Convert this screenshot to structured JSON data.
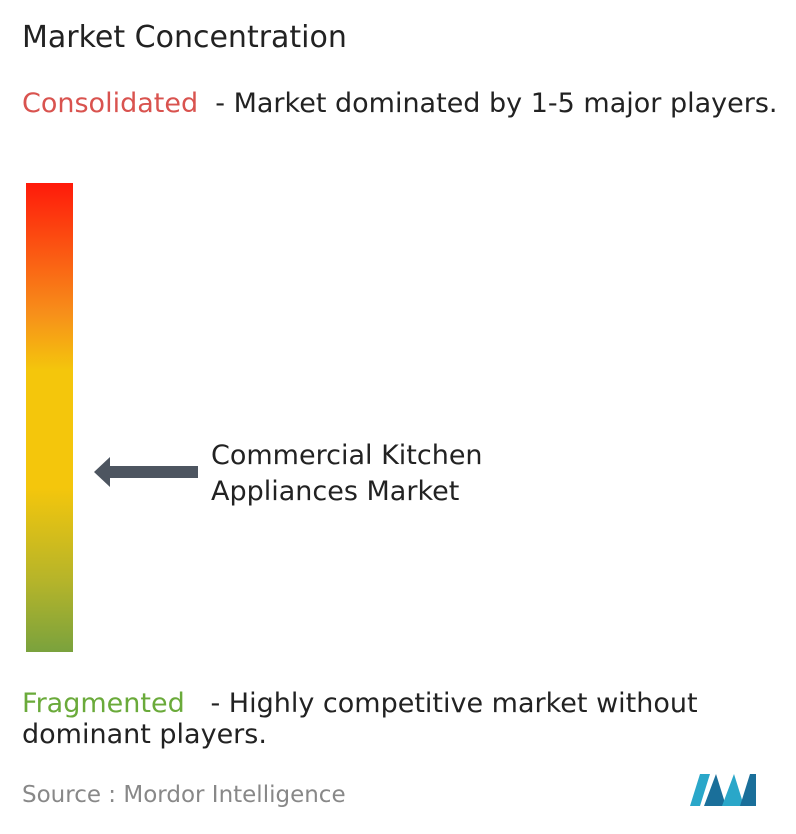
{
  "title": "Market Concentration",
  "consolidated": {
    "label": "Consolidated",
    "description": "- Market dominated by 1-5 major players."
  },
  "fragmented": {
    "label": "Fragmented",
    "description": "- Highly competitive market without dominant players."
  },
  "marker": {
    "label": "Commercial Kitchen Appliances Market"
  },
  "source": {
    "label": "Source :",
    "name": "Mordor Intelligence"
  }
}
